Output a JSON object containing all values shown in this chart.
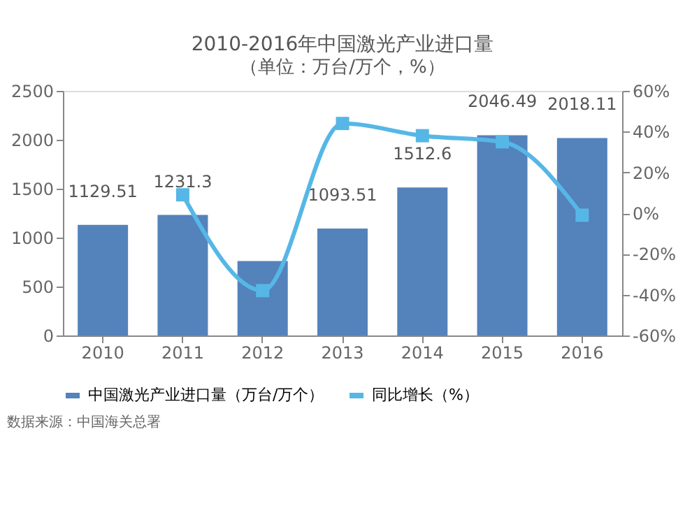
{
  "chart_data": {
    "type": "bar",
    "title": "2010-2016年中国激光产业进口量",
    "subtitle": "（单位：万台/万个，%）",
    "categories": [
      "2010",
      "2011",
      "2012",
      "2013",
      "2014",
      "2015",
      "2016"
    ],
    "series": [
      {
        "name": "中国激光产业进口量（万台/万个）",
        "color": "#5482bb",
        "values": [
          1129.51,
          1231.3,
          760,
          1093.51,
          1512.6,
          2046.49,
          2018.11
        ],
        "value_labels": [
          "1129.51",
          "1231.3",
          null,
          "1093.51",
          "1512.6",
          "2046.49",
          "2018.11"
        ]
      },
      {
        "type": "line",
        "name": "同比增长（%）",
        "color": "#56b7e6",
        "axis": "y2",
        "marker": "square",
        "values": [
          null,
          9,
          -38,
          44,
          38,
          35,
          -1
        ]
      }
    ],
    "ylim": [
      0,
      2500
    ],
    "yticks": [
      0,
      500,
      1000,
      1500,
      2000,
      2500
    ],
    "y2lim": [
      -60,
      60
    ],
    "y2ticks": [
      {
        "value": -60,
        "label": "-60%"
      },
      {
        "value": -40,
        "label": "-40%"
      },
      {
        "value": -20,
        "label": "-20%"
      },
      {
        "value": 0,
        "label": "0%"
      },
      {
        "value": 20,
        "label": "20%"
      },
      {
        "value": 40,
        "label": "40%"
      },
      {
        "value": 60,
        "label": "60%"
      }
    ],
    "grid": false,
    "legend": "bottom",
    "annotations": [
      "数据来源：中国海关总署"
    ]
  }
}
